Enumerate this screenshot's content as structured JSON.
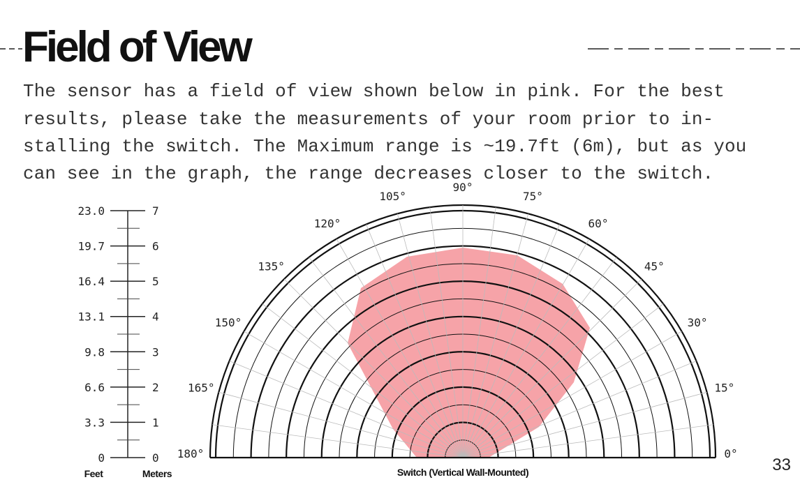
{
  "header": {
    "title": "Field of View",
    "page_number": "33"
  },
  "body": {
    "lines": [
      "The sensor has a field of view shown below in pink. For the best",
      "results, please take the measurements of your room prior to in-",
      "stalling the switch. The Maximum range is ~19.7ft (6m), but as you",
      "can see in the graph, the range decreases closer to the switch."
    ]
  },
  "scale": {
    "feet_label": "Feet",
    "meters_label": "Meters",
    "feet": [
      "0",
      "3.3",
      "6.6",
      "9.8",
      "13.1",
      "16.4",
      "19.7",
      "23.0"
    ],
    "meters": [
      "0",
      "1",
      "2",
      "3",
      "4",
      "5",
      "6",
      "7"
    ]
  },
  "polar": {
    "angles": [
      "0°",
      "15°",
      "30°",
      "45°",
      "60°",
      "75°",
      "90°",
      "105°",
      "120°",
      "135°",
      "150°",
      "165°",
      "180°"
    ],
    "caption": "Switch (Vertical Wall-Mounted)"
  }
}
